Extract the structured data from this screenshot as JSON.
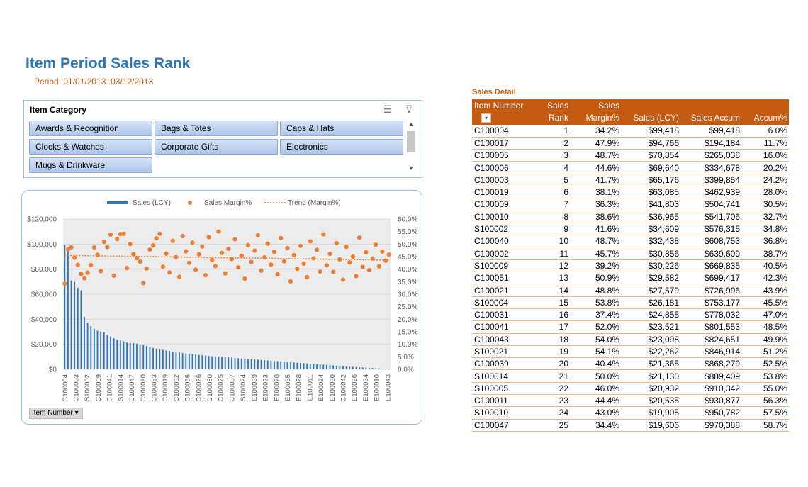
{
  "header": {
    "title": "Item Period Sales Rank",
    "period": "Period:  01/01/2013..03/12/2013"
  },
  "slicer": {
    "title": "Item Category",
    "items": [
      "Awards & Recognition",
      "Bags & Totes",
      "Caps & Hats",
      "Clocks & Watches",
      "Corporate Gifts",
      "Electronics",
      "Mugs & Drinkware"
    ]
  },
  "field_button": "Item  Number",
  "colors": {
    "bar": "#2E75B6",
    "dot": "#ED7D31",
    "trend": "#ED7D31",
    "header": "#C55A11",
    "title": "#2E75B6"
  },
  "chart_data": {
    "type": "bar",
    "legend": [
      "Sales (LCY)",
      "Sales Margin%",
      "Trend (Margin%)"
    ],
    "legend_position": "top",
    "y_left": {
      "ticks": [
        "$0",
        "$20,000",
        "$40,000",
        "$60,000",
        "$80,000",
        "$100,000",
        "$120,000"
      ],
      "range": [
        0,
        120000
      ]
    },
    "y_right": {
      "ticks": [
        "0.0%",
        "5.0%",
        "10.0%",
        "15.0%",
        "20.0%",
        "25.0%",
        "30.0%",
        "35.0%",
        "40.0%",
        "45.0%",
        "50.0%",
        "55.0%",
        "60.0%"
      ],
      "range": [
        0,
        60
      ]
    },
    "x_tick_labels": [
      "C100004",
      "C100003",
      "S100002",
      "C100009",
      "C100041",
      "S100014",
      "C100047",
      "C100020",
      "C100053",
      "C100019",
      "C100032",
      "C100056",
      "C100026",
      "C100050",
      "C100025",
      "C100037",
      "S100024",
      "E100039",
      "E100023",
      "E100020",
      "E100035",
      "E100028",
      "E100011",
      "E100024",
      "E100030",
      "C100042",
      "E100026",
      "E100034",
      "E100010",
      "E100043"
    ],
    "sales": [
      99418,
      94766,
      70854,
      69640,
      65176,
      63085,
      41803,
      36965,
      34609,
      32438,
      30856,
      30226,
      29582,
      27579,
      26181,
      24855,
      23521,
      23098,
      22262,
      21365,
      21130,
      20932,
      20535,
      19905,
      19606,
      18500,
      17600,
      17000,
      16500,
      16000,
      15500,
      15000,
      14600,
      14200,
      13800,
      13400,
      13000,
      12700,
      12400,
      12100,
      11800,
      11500,
      11200,
      10900,
      10700,
      10500,
      10300,
      10100,
      9900,
      9700,
      9500,
      9300,
      9100,
      8900,
      8700,
      8500,
      8300,
      8100,
      7900,
      7700,
      7500,
      7300,
      7100,
      6900,
      6700,
      6500,
      6300,
      6100,
      5900,
      5700,
      5500,
      5300,
      5100,
      4900,
      4700,
      4500,
      4300,
      4100,
      3900,
      3700,
      3500,
      3300,
      3100,
      2900,
      2700,
      2500,
      2300,
      2100,
      1950,
      1800,
      1650,
      1500,
      1350,
      1200,
      1050,
      900,
      750,
      600,
      450,
      300
    ],
    "margin": [
      34.2,
      47.9,
      48.7,
      44.6,
      41.7,
      38.1,
      36.3,
      38.6,
      41.6,
      48.7,
      45.7,
      39.2,
      50.9,
      48.8,
      53.8,
      37.4,
      52.0,
      54.0,
      54.1,
      40.4,
      50.0,
      46.0,
      44.4,
      43.0,
      34.4,
      40.2,
      47.8,
      49.5,
      52.3,
      54.1,
      41.0,
      46.2,
      38.7,
      51.3,
      44.8,
      36.9,
      53.2,
      47.1,
      42.5,
      50.6,
      39.8,
      45.9,
      49.0,
      37.6,
      52.8,
      43.7,
      41.2,
      55.0,
      46.5,
      38.3,
      48.1,
      44.0,
      51.9,
      40.7,
      45.3,
      36.2,
      49.6,
      42.9,
      47.4,
      53.5,
      39.4,
      44.7,
      50.2,
      41.8,
      46.9,
      37.9,
      52.4,
      43.1,
      48.4,
      35.1,
      45.6,
      40.1,
      49.3,
      42.2,
      36.8,
      51.1,
      44.3,
      47.7,
      39.0,
      53.9,
      41.5,
      46.1,
      38.9,
      50.4,
      43.9,
      35.8,
      48.9,
      42.7,
      45.0,
      37.2,
      52.6,
      40.9,
      46.7,
      39.6,
      44.2,
      49.8,
      41.1,
      47.0,
      43.4,
      45.8
    ],
    "trend": [
      45.5,
      43.6
    ],
    "xlabel": "",
    "ylabel": ""
  },
  "table": {
    "title": "Sales Detail",
    "columns": [
      "Item Number",
      "Sales Rank",
      "Sales Margin%",
      "Sales (LCY)",
      "Sales Accum",
      "Accum%"
    ],
    "rows": [
      [
        "C100004",
        "1",
        "34.2%",
        "$99,418",
        "$99,418",
        "6.0%"
      ],
      [
        "C100017",
        "2",
        "47.9%",
        "$94,766",
        "$194,184",
        "11.7%"
      ],
      [
        "C100005",
        "3",
        "48.7%",
        "$70,854",
        "$265,038",
        "16.0%"
      ],
      [
        "C100006",
        "4",
        "44.6%",
        "$69,640",
        "$334,678",
        "20.2%"
      ],
      [
        "C100003",
        "5",
        "41.7%",
        "$65,176",
        "$399,854",
        "24.2%"
      ],
      [
        "C100019",
        "6",
        "38.1%",
        "$63,085",
        "$462,939",
        "28.0%"
      ],
      [
        "C100009",
        "7",
        "36.3%",
        "$41,803",
        "$504,741",
        "30.5%"
      ],
      [
        "C100010",
        "8",
        "38.6%",
        "$36,965",
        "$541,706",
        "32.7%"
      ],
      [
        "S100002",
        "9",
        "41.6%",
        "$34,609",
        "$576,315",
        "34.8%"
      ],
      [
        "C100040",
        "10",
        "48.7%",
        "$32,438",
        "$608,753",
        "36.8%"
      ],
      [
        "C100002",
        "11",
        "45.7%",
        "$30,856",
        "$639,609",
        "38.7%"
      ],
      [
        "S100009",
        "12",
        "39.2%",
        "$30,226",
        "$669,835",
        "40.5%"
      ],
      [
        "C100051",
        "13",
        "50.9%",
        "$29,582",
        "$699,417",
        "42.3%"
      ],
      [
        "C100021",
        "14",
        "48.8%",
        "$27,579",
        "$726,996",
        "43.9%"
      ],
      [
        "S100004",
        "15",
        "53.8%",
        "$26,181",
        "$753,177",
        "45.5%"
      ],
      [
        "C100031",
        "16",
        "37.4%",
        "$24,855",
        "$778,032",
        "47.0%"
      ],
      [
        "C100041",
        "17",
        "52.0%",
        "$23,521",
        "$801,553",
        "48.5%"
      ],
      [
        "C100043",
        "18",
        "54.0%",
        "$23,098",
        "$824,651",
        "49.9%"
      ],
      [
        "S100021",
        "19",
        "54.1%",
        "$22,262",
        "$846,914",
        "51.2%"
      ],
      [
        "C100039",
        "20",
        "40.4%",
        "$21,365",
        "$868,279",
        "52.5%"
      ],
      [
        "S100014",
        "21",
        "50.0%",
        "$21,130",
        "$889,409",
        "53.8%"
      ],
      [
        "S100005",
        "22",
        "46.0%",
        "$20,932",
        "$910,342",
        "55.0%"
      ],
      [
        "C100011",
        "23",
        "44.4%",
        "$20,535",
        "$930,877",
        "56.3%"
      ],
      [
        "S100010",
        "24",
        "43.0%",
        "$19,905",
        "$950,782",
        "57.5%"
      ],
      [
        "C100047",
        "25",
        "34.4%",
        "$19,606",
        "$970,388",
        "58.7%"
      ]
    ]
  }
}
